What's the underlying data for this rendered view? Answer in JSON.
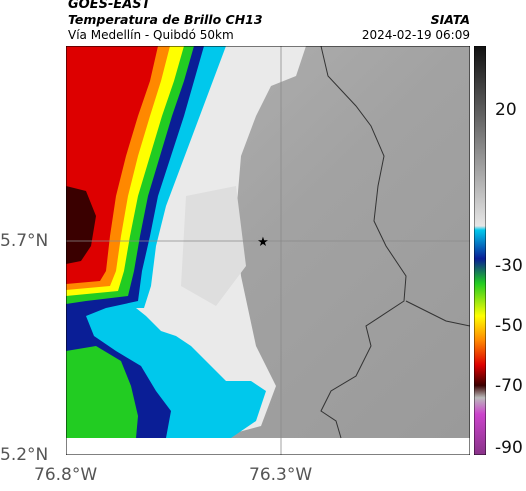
{
  "header": {
    "satellite": "GOES-EAST",
    "product": "Temperatura de Brillo CH13",
    "route": "Vía Medellín - Quibdó 50km",
    "organization": "SIATA",
    "datetime": "2024-02-19 06:09"
  },
  "axes": {
    "lat_ticks": [
      "5.7°N",
      "5.2°N"
    ],
    "lon_ticks": [
      "76.8°W",
      "76.3°W"
    ]
  },
  "colorbar": {
    "tick_labels": [
      "20",
      "-30",
      "-50",
      "-70",
      "-90"
    ],
    "colors": {
      "warm_top": "#111111",
      "warm_bottom": "#e6e6e6",
      "cyan": "#00c8ec",
      "blue": "#0a1e96",
      "green": "#22cc22",
      "yellow": "#ffff00",
      "orange": "#ff8800",
      "red": "#dd0000",
      "darkred": "#3a0000",
      "magenta": "#cc44cc"
    }
  },
  "map": {
    "marker_icon": "star-icon",
    "colors": {
      "clear_gray": "#a9a9a9",
      "cloud_white": "#eeeeee",
      "border_line": "#333333",
      "grid_line": "#8a8a8a"
    }
  }
}
